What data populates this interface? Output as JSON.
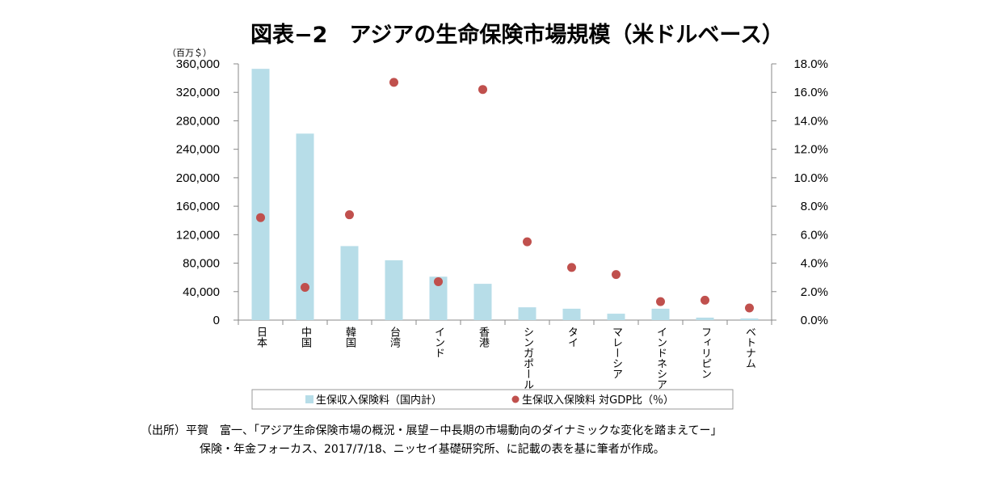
{
  "chart_data": {
    "type": "bar",
    "title": "図表−2　アジアの生命保険市場規模（米ドルベース）",
    "y_unit_label": "（百万＄）",
    "categories": [
      "日本",
      "中国",
      "韓国",
      "台湾",
      "インド",
      "香港",
      "シンガポール",
      "タイ",
      "マレーシア",
      "インドネシア",
      "フィリピン",
      "ベトナム"
    ],
    "series": [
      {
        "name": "生保収入保険料（国内計）",
        "type": "bar",
        "axis": "left",
        "color": "#b7dde8",
        "values": [
          353000,
          262000,
          104000,
          84000,
          61000,
          51000,
          18000,
          16000,
          9000,
          16000,
          3500,
          2300
        ]
      },
      {
        "name": "生保収入保険料 対GDP比（％）",
        "type": "scatter",
        "axis": "right",
        "color": "#c0504d",
        "values": [
          7.2,
          2.3,
          7.4,
          16.7,
          2.7,
          16.2,
          5.5,
          3.7,
          3.2,
          1.3,
          1.4,
          0.85
        ]
      }
    ],
    "ylim_left": [
      0,
      360000
    ],
    "yticks_left": [
      "0",
      "40,000",
      "80,000",
      "120,000",
      "160,000",
      "200,000",
      "240,000",
      "280,000",
      "320,000",
      "360,000"
    ],
    "ylim_right": [
      0,
      18
    ],
    "yticks_right": [
      "0.0%",
      "2.0%",
      "4.0%",
      "6.0%",
      "8.0%",
      "10.0%",
      "12.0%",
      "14.0%",
      "16.0%",
      "18.0%"
    ],
    "grid": false,
    "legend_placement": "bottom"
  },
  "source_note": {
    "line1": "（出所）平賀　富一、「アジア生命保険市場の概況・展望－中長期の市場動向のダイナミックな変化を踏まえてー」",
    "line2": "保険・年金フォーカス、2017/7/18、ニッセイ基礎研究所、に記載の表を基に筆者が作成。"
  }
}
